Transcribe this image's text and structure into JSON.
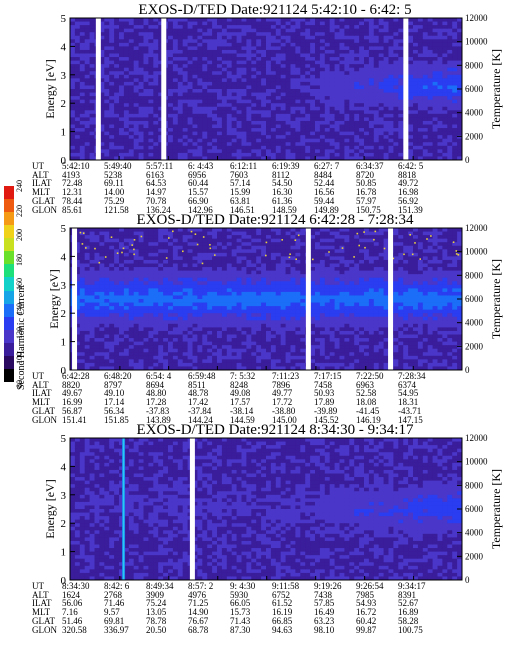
{
  "chart_data": [
    {
      "type": "heatmap",
      "title": "EXOS-D/TED   Date:921124   5:42:10 - 6:42: 5",
      "ylabel": "Energy [eV]",
      "y2label": "Temperature [K]",
      "ylim": [
        0,
        5
      ],
      "y_ticks": [
        "0",
        "1",
        "2",
        "3",
        "4",
        "5"
      ],
      "y2lim": [
        0,
        12000
      ],
      "y2_ticks": [
        "0",
        "2000",
        "4000",
        "6000",
        "8000",
        "10000",
        "12000"
      ],
      "gaps_ut": [
        "5:46:30",
        "5:56:30",
        "6:33:30"
      ],
      "band_energy_center": 2.6,
      "ephemeris": {
        "labels": [
          "UT",
          "ALT",
          "ILAT",
          "MLT",
          "GLAT",
          "GLON"
        ],
        "columns": [
          [
            "5:42:10",
            "4193",
            "72.48",
            "12.31",
            "78.44",
            "85.61"
          ],
          [
            "5:49:40",
            "5238",
            "69.11",
            "14.00",
            "75.29",
            "121.58"
          ],
          [
            "5:57:11",
            "6163",
            "64.53",
            "14.97",
            "70.78",
            "136.24"
          ],
          [
            "6: 4:43",
            "6956",
            "60.44",
            "15.57",
            "66.90",
            "142.96"
          ],
          [
            "6:12:11",
            "7603",
            "57.14",
            "15.99",
            "63.81",
            "146.51"
          ],
          [
            "6:19:39",
            "8112",
            "54.50",
            "16.30",
            "61.36",
            "148.59"
          ],
          [
            "6:27: 7",
            "8484",
            "52.44",
            "16.56",
            "59.44",
            "149.89"
          ],
          [
            "6:34:37",
            "8720",
            "50.85",
            "16.78",
            "57.97",
            "150.75"
          ],
          [
            "6:42: 5",
            "8818",
            "49.72",
            "16.98",
            "56.92",
            "151.39"
          ]
        ]
      }
    },
    {
      "type": "heatmap",
      "title": "EXOS-D/TED   Date:921124   6:42:28 - 7:28:34",
      "ylabel": "Energy [eV]",
      "y2label": "Temperature [K]",
      "ylim": [
        0,
        5
      ],
      "y_ticks": [
        "0",
        "1",
        "2",
        "3",
        "4",
        "5"
      ],
      "y2lim": [
        0,
        12000
      ],
      "y2_ticks": [
        "0",
        "2000",
        "4000",
        "6000",
        "8000",
        "10000",
        "12000"
      ],
      "gaps_ut": [
        "6:43:00",
        "7:10:30",
        "7:20:10"
      ],
      "band_energy_center": 2.5,
      "ephemeris": {
        "labels": [
          "UT",
          "ALT",
          "ILAT",
          "MLT",
          "GLAT",
          "GLON"
        ],
        "columns": [
          [
            "6:42:28",
            "8820",
            "49.67",
            "16.99",
            "56.87",
            "151.41"
          ],
          [
            "6:48:20",
            "8797",
            "49.10",
            "17.14",
            "56.34",
            "151.85"
          ],
          [
            "6:54: 4",
            "8694",
            "48.80",
            "17.28",
            "-37.83",
            "143.89"
          ],
          [
            "6:59:48",
            "8511",
            "48.78",
            "17.42",
            "-37.84",
            "144.24"
          ],
          [
            "7: 5:32",
            "8248",
            "49.08",
            "17.57",
            "-38.14",
            "144.59"
          ],
          [
            "7:11:23",
            "7896",
            "49.77",
            "17.72",
            "-38.80",
            "145.00"
          ],
          [
            "7:17:15",
            "7458",
            "50.93",
            "17.89",
            "-39.89",
            "145.52"
          ],
          [
            "7:22:50",
            "6963",
            "52.58",
            "18.08",
            "-41.45",
            "146.19"
          ],
          [
            "7:28:34",
            "6374",
            "54.95",
            "18.31",
            "-43.71",
            "147.15"
          ]
        ]
      },
      "colorbar": {
        "label": "Second Harmonic Current",
        "ticks": [
          "80",
          "100",
          "120",
          "140",
          "160",
          "180",
          "200",
          "220",
          "240"
        ],
        "colors": [
          "#000000",
          "#2a0a60",
          "#3a1d9a",
          "#4a36c8",
          "#2a3df0",
          "#1a6ef7",
          "#16a6e8",
          "#12d1c8",
          "#1ee07a",
          "#6be02a",
          "#c8e020",
          "#f0d21a",
          "#f59a14",
          "#ee5a10",
          "#e01a10"
        ]
      }
    },
    {
      "type": "heatmap",
      "title": "EXOS-D/TED   Date:921124   8:34:30 - 9:34:17",
      "ylabel": "Energy [eV]",
      "y2label": "Temperature [K]",
      "ylim": [
        0,
        5
      ],
      "y_ticks": [
        "0",
        "1",
        "2",
        "3",
        "4",
        "5"
      ],
      "y2lim": [
        0,
        12000
      ],
      "y2_ticks": [
        "0",
        "2000",
        "4000",
        "6000",
        "8000",
        "10000",
        "12000"
      ],
      "gaps_ut": [
        "8:53:10"
      ],
      "band_energy_center": 2.5,
      "ephemeris": {
        "labels": [
          "UT",
          "ALT",
          "ILAT",
          "MLT",
          "GLAT",
          "GLON"
        ],
        "columns": [
          [
            "8:34:30",
            "1624",
            "56.06",
            "7.16",
            "51.46",
            "320.58"
          ],
          [
            "8:42: 6",
            "2768",
            "71.46",
            "9.57",
            "69.81",
            "336.97"
          ],
          [
            "8:49:34",
            "3909",
            "75.24",
            "13.05",
            "78.78",
            "20.50"
          ],
          [
            "8:57: 2",
            "4976",
            "71.25",
            "14.90",
            "76.67",
            "68.78"
          ],
          [
            "9: 4:30",
            "5930",
            "66.05",
            "15.73",
            "71.43",
            "87.30"
          ],
          [
            "9:11:58",
            "6752",
            "61.52",
            "16.19",
            "66.85",
            "94.63"
          ],
          [
            "9:19:26",
            "7438",
            "57.85",
            "16.49",
            "63.23",
            "98.10"
          ],
          [
            "9:26:54",
            "7985",
            "54.93",
            "16.72",
            "60.42",
            "99.87"
          ],
          [
            "9:34:17",
            "8391",
            "52.67",
            "16.89",
            "58.28",
            "100.75"
          ]
        ]
      }
    }
  ]
}
